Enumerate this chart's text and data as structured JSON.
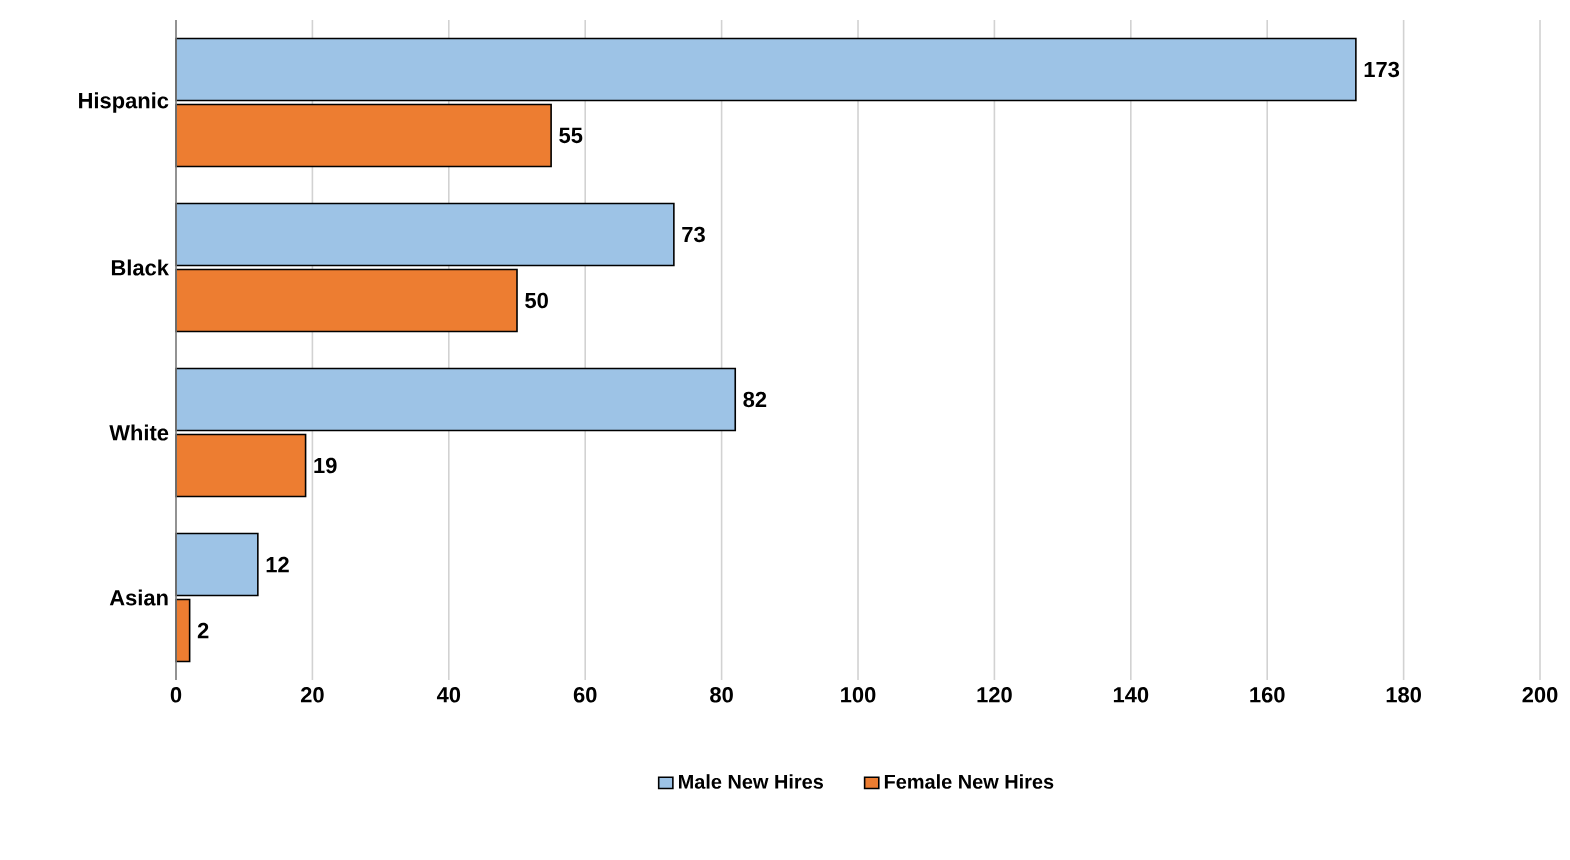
{
  "chart_data": {
    "type": "bar",
    "orientation": "horizontal",
    "categories": [
      "Hispanic",
      "Black",
      "White",
      "Asian"
    ],
    "series": [
      {
        "name": "Male New Hires",
        "color": "#9dc3e6",
        "values": [
          173,
          73,
          82,
          12
        ]
      },
      {
        "name": "Female New Hires",
        "color": "#ed7d31",
        "values": [
          55,
          50,
          19,
          2
        ]
      }
    ],
    "xlim": [
      0,
      200
    ],
    "xticks": [
      0,
      20,
      40,
      60,
      80,
      100,
      120,
      140,
      160,
      180,
      200
    ],
    "grid": "x",
    "legend": "bottom",
    "data_labels": true
  }
}
